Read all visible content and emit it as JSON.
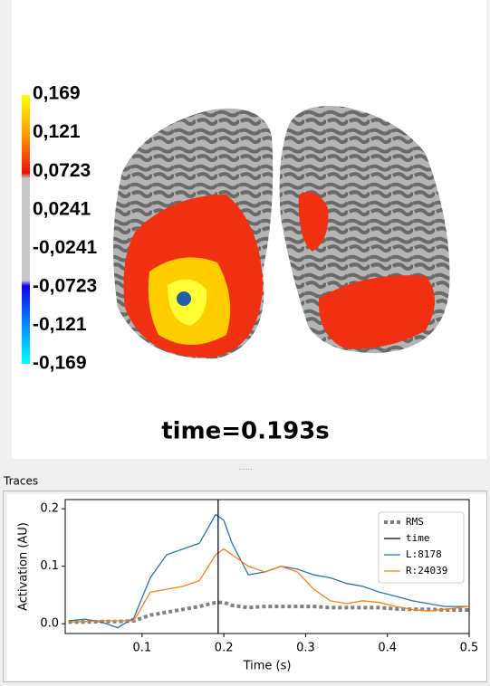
{
  "colorbar": {
    "lim": [
      -0.169,
      0.169
    ],
    "ticks": [
      {
        "value": 0.169,
        "label": "0,169"
      },
      {
        "value": 0.121,
        "label": "0,121"
      },
      {
        "value": 0.0723,
        "label": "0,0723"
      },
      {
        "value": 0.0241,
        "label": "0,0241"
      },
      {
        "value": -0.0241,
        "label": "-0,0241"
      },
      {
        "value": -0.0723,
        "label": "-0,0723"
      },
      {
        "value": -0.121,
        "label": "-0,121"
      },
      {
        "value": -0.169,
        "label": "-0,169"
      }
    ]
  },
  "time_label": "time=0.193s",
  "panel_title": "Traces",
  "chart_data": {
    "type": "line",
    "xlabel": "Time (s)",
    "ylabel": "Activation (AU)",
    "x": [
      0.01,
      0.03,
      0.05,
      0.07,
      0.09,
      0.11,
      0.13,
      0.15,
      0.17,
      0.19,
      0.2,
      0.21,
      0.23,
      0.25,
      0.27,
      0.29,
      0.31,
      0.33,
      0.35,
      0.37,
      0.39,
      0.41,
      0.43,
      0.45,
      0.47,
      0.5
    ],
    "series": [
      {
        "name": "RMS",
        "color": "#808080",
        "style": "dotted",
        "values": [
          0.003,
          0.003,
          0.004,
          0.004,
          0.005,
          0.015,
          0.02,
          0.025,
          0.03,
          0.037,
          0.037,
          0.032,
          0.028,
          0.03,
          0.03,
          0.03,
          0.03,
          0.028,
          0.028,
          0.028,
          0.028,
          0.026,
          0.025,
          0.025,
          0.024,
          0.024
        ]
      },
      {
        "name": "L:8178",
        "color": "#1f77b4",
        "style": "solid",
        "values": [
          0.005,
          0.008,
          0.003,
          -0.007,
          0.01,
          0.08,
          0.12,
          0.13,
          0.14,
          0.19,
          0.18,
          0.14,
          0.085,
          0.09,
          0.1,
          0.095,
          0.085,
          0.08,
          0.07,
          0.065,
          0.055,
          0.048,
          0.04,
          0.035,
          0.03,
          0.03
        ]
      },
      {
        "name": "R:24039",
        "color": "#ff7f0e",
        "style": "solid",
        "values": [
          0.003,
          0.004,
          0.005,
          0.005,
          0.005,
          0.055,
          0.06,
          0.065,
          0.075,
          0.12,
          0.13,
          0.12,
          0.1,
          0.09,
          0.1,
          0.09,
          0.06,
          0.04,
          0.035,
          0.04,
          0.037,
          0.03,
          0.025,
          0.022,
          0.025,
          0.03
        ]
      }
    ],
    "vlines": [
      {
        "name": "time",
        "x": 0.193,
        "color": "#000000"
      }
    ],
    "xlim": [
      0.006,
      0.5
    ],
    "xticks": [
      0.1,
      0.2,
      0.3,
      0.4,
      0.5
    ],
    "ylim": [
      -0.017,
      0.216
    ],
    "yticks": [
      {
        "value": 0,
        "label": "0.0"
      },
      0.1,
      0.2
    ]
  }
}
